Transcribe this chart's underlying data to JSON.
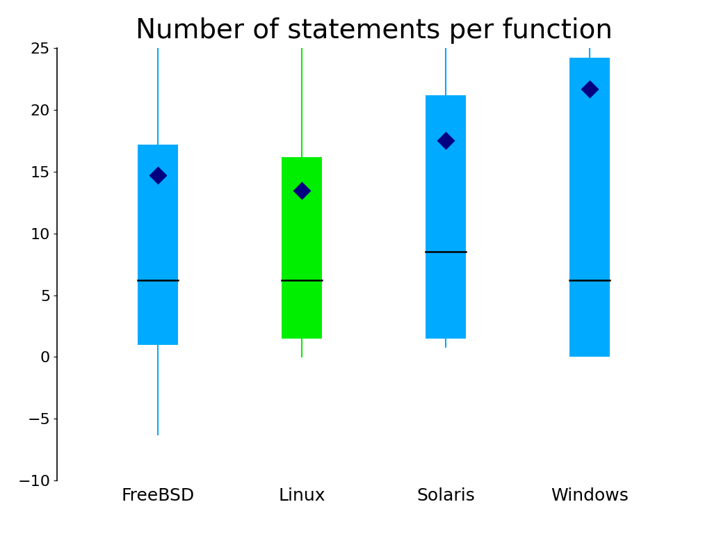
{
  "title": "Number of statements per function",
  "categories": [
    "FreeBSD",
    "Linux",
    "Solaris",
    "Windows"
  ],
  "box_data": [
    {
      "q1": 1.0,
      "median": 6.2,
      "q3": 17.2,
      "whisker_low": -6.3,
      "whisker_high": 25.0,
      "mean": 14.7
    },
    {
      "q1": 1.5,
      "median": 6.2,
      "q3": 16.2,
      "whisker_low": 0.0,
      "whisker_high": 25.0,
      "mean": 13.5
    },
    {
      "q1": 1.5,
      "median": 8.5,
      "q3": 21.2,
      "whisker_low": 0.8,
      "whisker_high": 25.0,
      "mean": 17.5
    },
    {
      "q1": 0.0,
      "median": 6.2,
      "q3": 24.2,
      "whisker_low": 0.0,
      "whisker_high": 25.0,
      "mean": 21.7
    }
  ],
  "box_colors": [
    "#00aaff",
    "#00ee00",
    "#00aaff",
    "#00aaff"
  ],
  "whisker_colors": [
    "#00aaff",
    "#00ee00",
    "#00aaff",
    "#00aaff"
  ],
  "mean_color": "#000080",
  "median_color": "#000000",
  "ylim": [
    -10,
    25
  ],
  "yticks": [
    -10,
    -5,
    0,
    5,
    10,
    15,
    20,
    25
  ],
  "box_width": 0.28,
  "positions": [
    1,
    2,
    3,
    4
  ],
  "xlim": [
    0.3,
    4.7
  ],
  "title_fontsize": 28,
  "tick_fontsize": 16,
  "label_fontsize": 18,
  "median_linewidth": 1.8,
  "whisker_linewidth": 1.5
}
